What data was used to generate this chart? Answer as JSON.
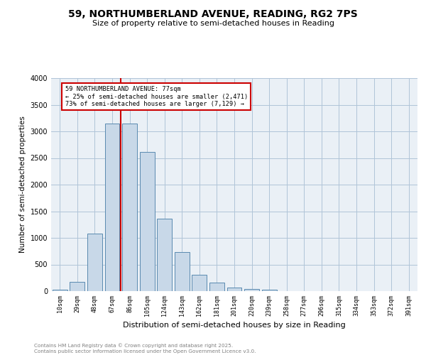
{
  "title_line1": "59, NORTHUMBERLAND AVENUE, READING, RG2 7PS",
  "title_line2": "Size of property relative to semi-detached houses in Reading",
  "xlabel": "Distribution of semi-detached houses by size in Reading",
  "ylabel": "Number of semi-detached properties",
  "footer_line1": "Contains HM Land Registry data © Crown copyright and database right 2025.",
  "footer_line2": "Contains public sector information licensed under the Open Government Licence v3.0.",
  "bar_labels": [
    "10sqm",
    "29sqm",
    "48sqm",
    "67sqm",
    "86sqm",
    "105sqm",
    "124sqm",
    "143sqm",
    "162sqm",
    "181sqm",
    "201sqm",
    "220sqm",
    "239sqm",
    "258sqm",
    "277sqm",
    "296sqm",
    "315sqm",
    "334sqm",
    "353sqm",
    "372sqm",
    "391sqm"
  ],
  "bar_values": [
    30,
    180,
    1080,
    3150,
    3150,
    2620,
    1360,
    740,
    310,
    155,
    70,
    40,
    30,
    0,
    0,
    0,
    0,
    0,
    0,
    0,
    0
  ],
  "bar_color": "#c8d8e8",
  "bar_edge_color": "#5a8ab0",
  "property_label": "59 NORTHUMBERLAND AVENUE: 77sqm",
  "pct_smaller": 25,
  "count_smaller": 2471,
  "pct_larger": 73,
  "count_larger": 7129,
  "vline_color": "#cc0000",
  "vline_x_index": 3.5,
  "annotation_box_color": "#cc0000",
  "ylim": [
    0,
    4000
  ],
  "yticks": [
    0,
    500,
    1000,
    1500,
    2000,
    2500,
    3000,
    3500,
    4000
  ],
  "grid_color": "#b0c4d8",
  "bg_color": "#eaf0f6"
}
